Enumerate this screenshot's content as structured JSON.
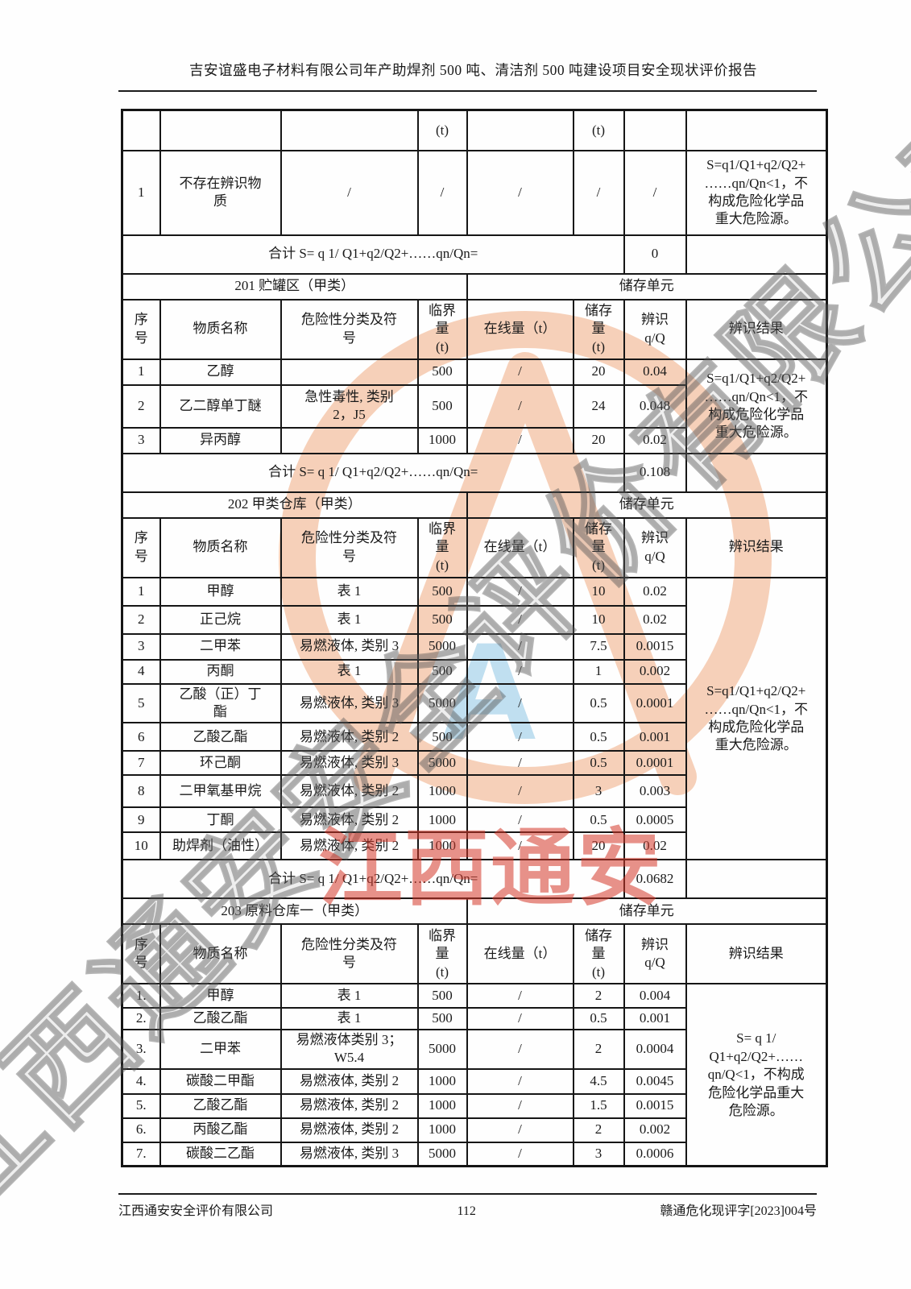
{
  "header": {
    "title": "吉安谊盛电子材料有限公司年产助焊剂 500 吨、清洁剂 500 吨建设项目安全现状评价报告"
  },
  "footer": {
    "company": "江西通安安全评价有限公司",
    "page_number": "112",
    "doc_number": "赣通危化现评字[2023]004号"
  },
  "watermarks": {
    "stamp_text": "江西通安",
    "diagonal_text": "江西通安安全评价有限公司",
    "logo_letter": "A",
    "stamp_color": "#d33728",
    "logo_color": "#f0a87c",
    "blue_color": "#82c0e2",
    "diagonal_color": "#545454"
  },
  "table": {
    "column_headers": [
      "序\n号",
      "物质名称",
      "危险性分类及符\n号",
      "临界\n量\n(t)",
      "在线量（t）",
      "储存\n量\n(t)",
      "辨识\nq/Q",
      "辨识结果"
    ],
    "carryover": {
      "partial_header": [
        "",
        "",
        "",
        "(t)",
        "",
        "(t)",
        "",
        ""
      ],
      "rows": [
        {
          "no": "1",
          "name": "不存在辨识物\n质",
          "class": "/",
          "critical": "/",
          "online": "/",
          "storage": "/",
          "ratio": "/"
        }
      ],
      "result": "S=q1/Q1+q2/Q2+\n……qn/Qn<1，不\n构成危险化学品\n重大危险源。",
      "total_label": "合计 S= q 1/ Q1+q2/Q2+……qn/Qn=",
      "total_value": "0"
    },
    "sections": [
      {
        "title": "201 贮罐区（甲类）",
        "unit_header": "储存单元",
        "rows": [
          {
            "no": "1",
            "name": "乙醇",
            "class": "",
            "critical": "500",
            "online": "/",
            "storage": "20",
            "ratio": "0.04"
          },
          {
            "no": "2",
            "name": "乙二醇单丁醚",
            "class": "急性毒性, 类别\n2，J5",
            "critical": "500",
            "online": "/",
            "storage": "24",
            "ratio": "0.048"
          },
          {
            "no": "3",
            "name": "异丙醇",
            "class": "",
            "critical": "1000",
            "online": "/",
            "storage": "20",
            "ratio": "0.02"
          }
        ],
        "result": "S=q1/Q1+q2/Q2+\n……qn/Qn<1，不\n构成危险化学品\n重大危险源。",
        "total_label": "合计 S= q 1/ Q1+q2/Q2+……qn/Qn=",
        "total_value": "0.108"
      },
      {
        "title": "202 甲类仓库（甲类）",
        "unit_header": "储存单元",
        "rows": [
          {
            "no": "1",
            "name": "甲醇",
            "class": "表 1",
            "critical": "500",
            "online": "/",
            "storage": "10",
            "ratio": "0.02"
          },
          {
            "no": "2",
            "name": "正己烷",
            "class": "表 1",
            "critical": "500",
            "online": "/",
            "storage": "10",
            "ratio": "0.02"
          },
          {
            "no": "3",
            "name": "二甲苯",
            "class": "易燃液体, 类别 3",
            "critical": "5000",
            "online": "/",
            "storage": "7.5",
            "ratio": "0.0015"
          },
          {
            "no": "4",
            "name": "丙酮",
            "class": "表 1",
            "critical": "500",
            "online": "/",
            "storage": "1",
            "ratio": "0.002"
          },
          {
            "no": "5",
            "name": "乙酸（正）丁\n酯",
            "class": "易燃液体, 类别 3",
            "critical": "5000",
            "online": "/",
            "storage": "0.5",
            "ratio": "0.0001"
          },
          {
            "no": "6",
            "name": "乙酸乙酯",
            "class": "易燃液体, 类别 2",
            "critical": "500",
            "online": "/",
            "storage": "0.5",
            "ratio": "0.001"
          },
          {
            "no": "7",
            "name": "环己酮",
            "class": "易燃液体, 类别 3",
            "critical": "5000",
            "online": "/",
            "storage": "0.5",
            "ratio": "0.0001"
          },
          {
            "no": "8",
            "name": "二甲氧基甲烷",
            "class": "易燃液体, 类别 2",
            "critical": "1000",
            "online": "/",
            "storage": "3",
            "ratio": "0.003"
          },
          {
            "no": "9",
            "name": "丁酮",
            "class": "易燃液体, 类别 2",
            "critical": "1000",
            "online": "/",
            "storage": "0.5",
            "ratio": "0.0005"
          },
          {
            "no": "10",
            "name": "助焊剂（油性）",
            "class": "易燃液体, 类别 2",
            "critical": "1000",
            "online": "/",
            "storage": "20",
            "ratio": "0.02"
          }
        ],
        "result": "S=q1/Q1+q2/Q2+\n……qn/Qn<1，不\n构成危险化学品\n重大危险源。",
        "total_label": "合计 S= q 1/ Q1+q2/Q2+……qn/Qn=",
        "total_value": "0.0682"
      },
      {
        "title": "203 原料仓库一（甲类）",
        "unit_header": "储存单元",
        "rows": [
          {
            "no": "1.",
            "name": "甲醇",
            "class": "表 1",
            "critical": "500",
            "online": "/",
            "storage": "2",
            "ratio": "0.004"
          },
          {
            "no": "2.",
            "name": "乙酸乙酯",
            "class": "表 1",
            "critical": "500",
            "online": "/",
            "storage": "0.5",
            "ratio": "0.001"
          },
          {
            "no": "3.",
            "name": "二甲苯",
            "class": "易燃液体类别 3；\nW5.4",
            "critical": "5000",
            "online": "/",
            "storage": "2",
            "ratio": "0.0004"
          },
          {
            "no": "4.",
            "name": "碳酸二甲酯",
            "class": "易燃液体, 类别 2",
            "critical": "1000",
            "online": "/",
            "storage": "4.5",
            "ratio": "0.0045"
          },
          {
            "no": "5.",
            "name": "乙酸乙酯",
            "class": "易燃液体, 类别 2",
            "critical": "1000",
            "online": "/",
            "storage": "1.5",
            "ratio": "0.0015"
          },
          {
            "no": "6.",
            "name": "丙酸乙酯",
            "class": "易燃液体, 类别 2",
            "critical": "1000",
            "online": "/",
            "storage": "2",
            "ratio": "0.002"
          },
          {
            "no": "7.",
            "name": "碳酸二乙酯",
            "class": "易燃液体, 类别 3",
            "critical": "5000",
            "online": "/",
            "storage": "3",
            "ratio": "0.0006"
          }
        ],
        "result": "S= q 1/\nQ1+q2/Q2+……\nqn/Q<1，不构成\n危险化学品重大\n危险源。",
        "total_label": null,
        "total_value": null
      }
    ]
  }
}
